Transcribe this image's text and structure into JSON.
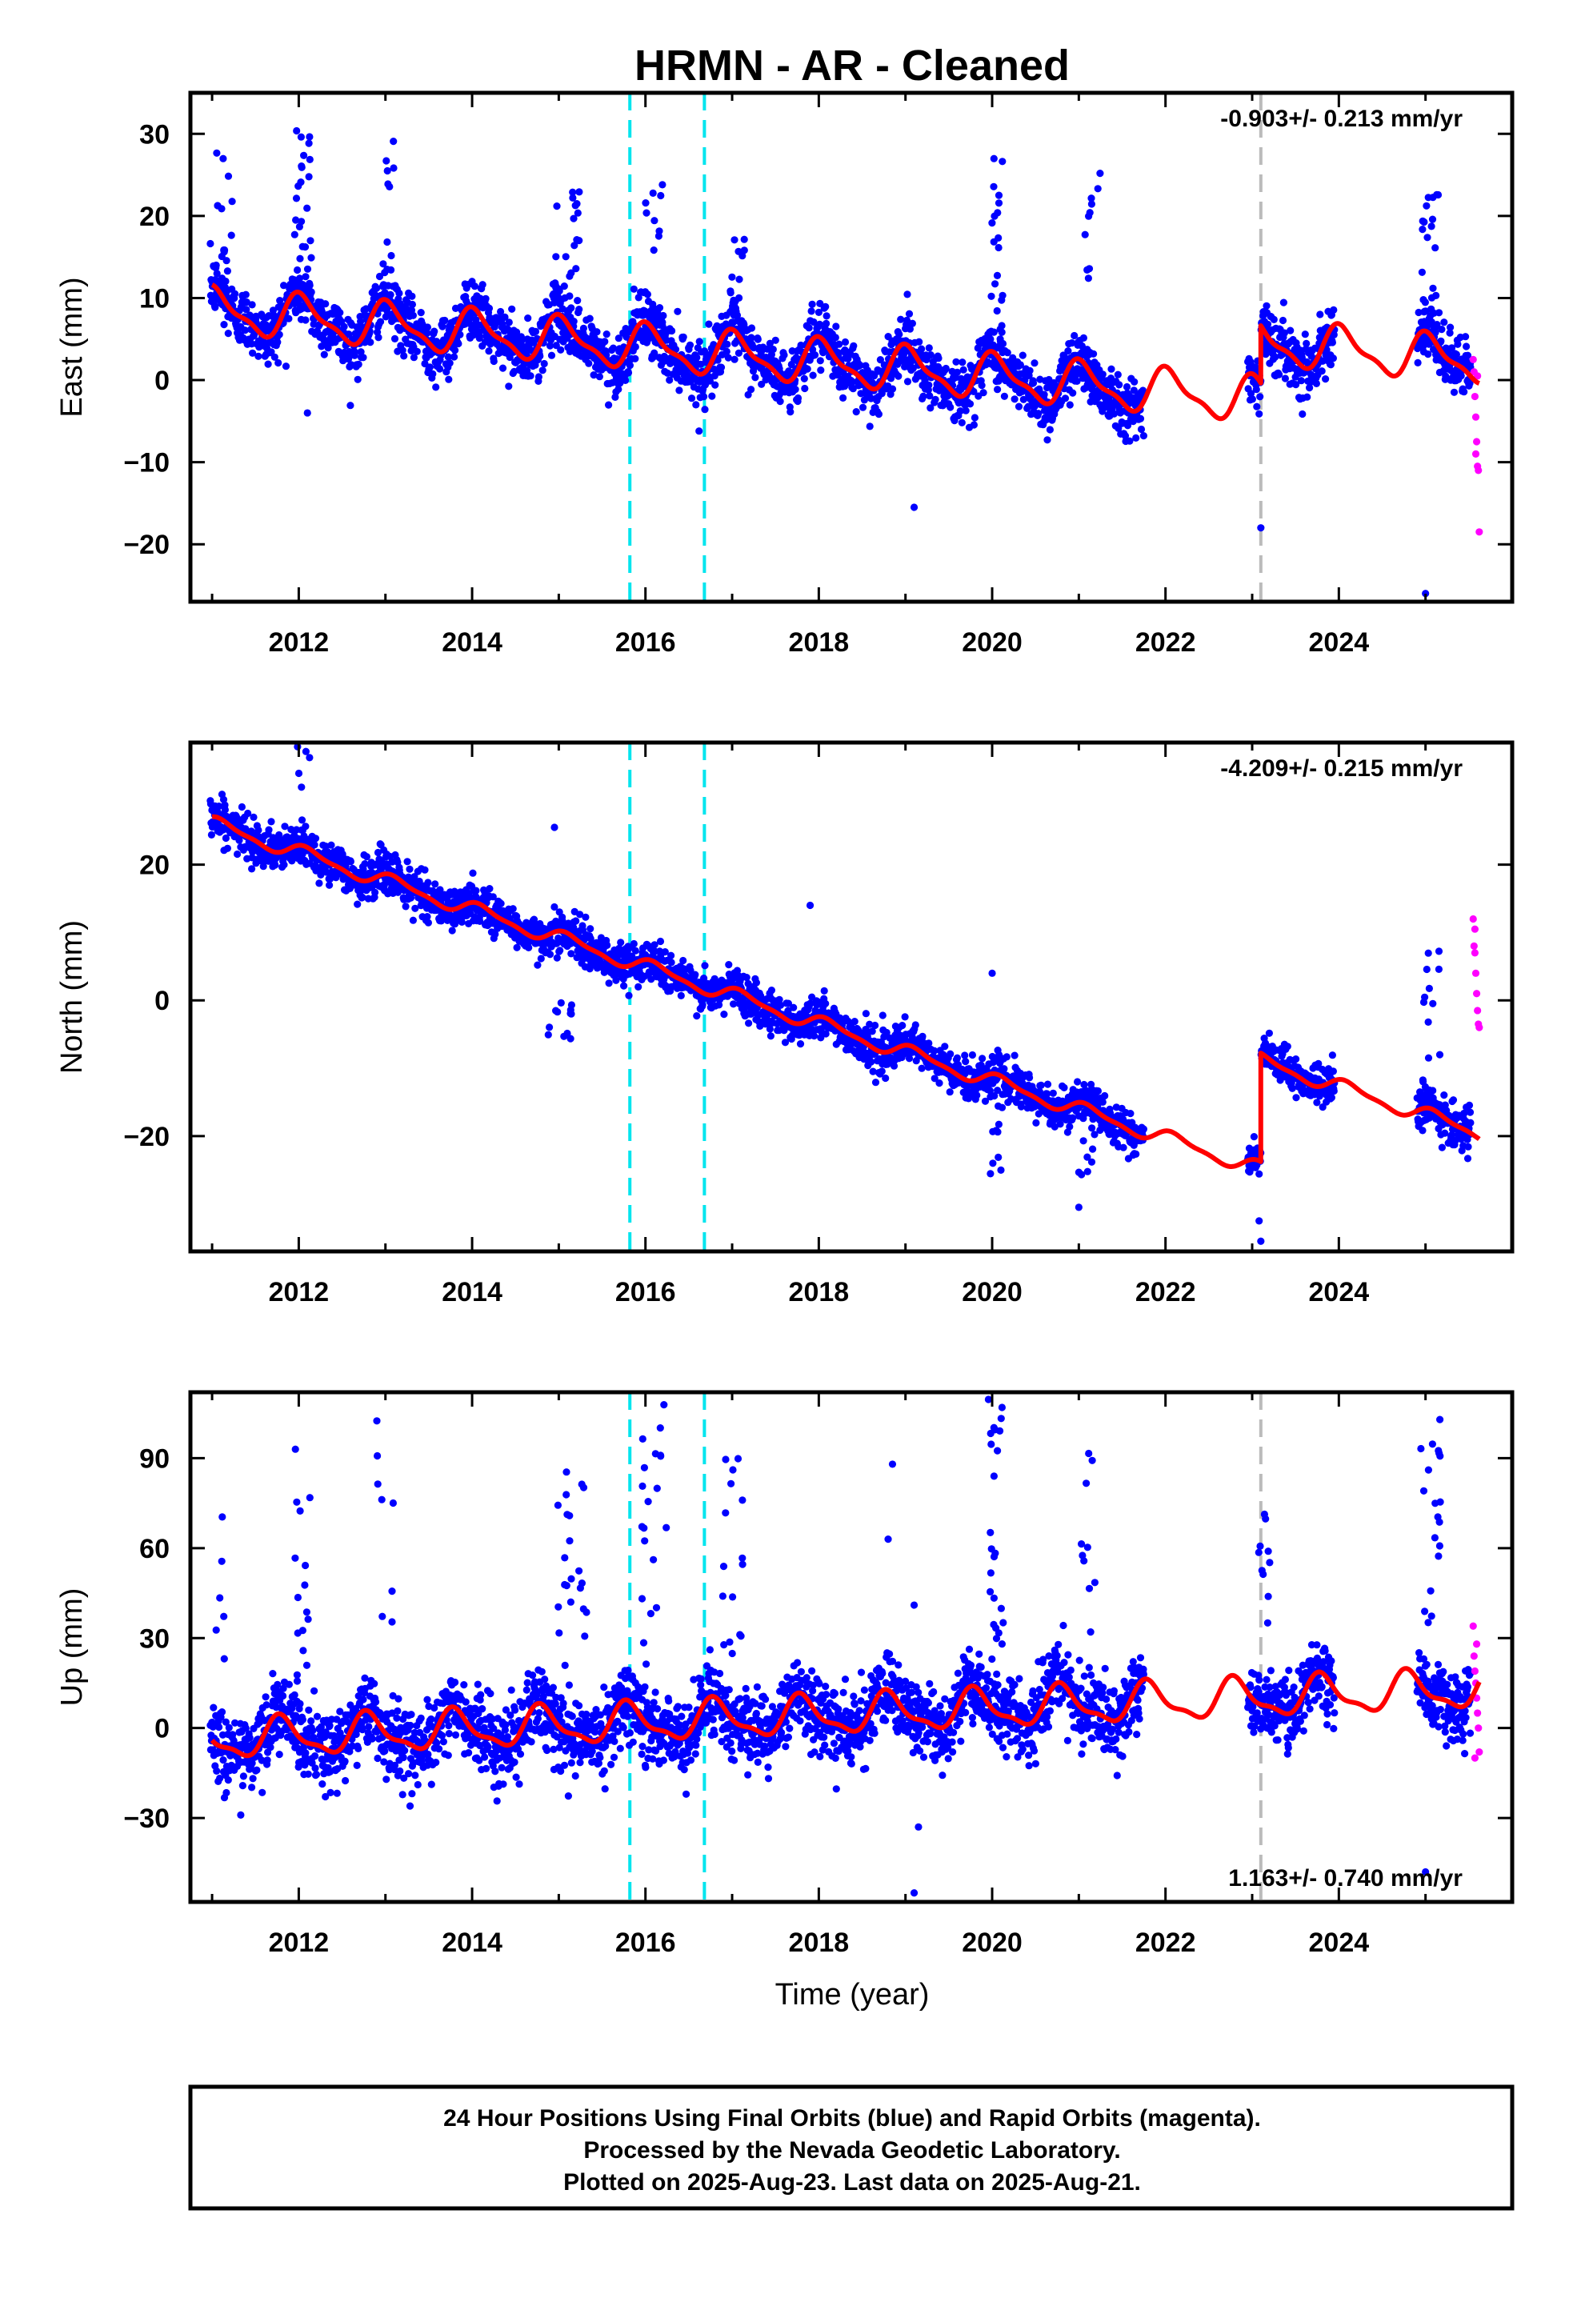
{
  "chart_data": {
    "title": "HRMN  - AR - Cleaned",
    "type": "scatter",
    "xlabel": "Time (year)",
    "xlim": [
      2010.75,
      2026.0
    ],
    "x_ticks": [
      2012,
      2014,
      2016,
      2018,
      2020,
      2022,
      2024
    ],
    "x_tick_labels": [
      "2012",
      "2014",
      "2016",
      "2018",
      "2020",
      "2022",
      "2024"
    ],
    "event_lines": [
      {
        "x": 2015.82,
        "color": "#00e5ee",
        "style": "dashed"
      },
      {
        "x": 2016.68,
        "color": "#00e5ee",
        "style": "dashed"
      },
      {
        "x": 2023.1,
        "color": "#bbbbbb",
        "style": "dashed"
      }
    ],
    "colors": {
      "final_orbits": "#0000ff",
      "rapid_orbits": "#ff00ff",
      "model": "#ff0000"
    },
    "panels": [
      {
        "name": "east",
        "ylabel": "East (mm)",
        "ylim": [
          -27,
          35
        ],
        "y_ticks": [
          30,
          20,
          10,
          0,
          -10,
          -20
        ],
        "y_tick_labels": [
          "30",
          "20",
          "10",
          "0",
          "−10",
          "−20"
        ],
        "rate_text": "-0.903+/- 0.213 mm/yr",
        "rate_pos": "top-right",
        "event_lines": [
          0,
          1,
          2
        ],
        "model": {
          "x0": 2011.0,
          "v0": 8.5,
          "rate": -0.903,
          "amp": 2.5,
          "phase": 1.3,
          "x_end": 2025.62,
          "steps": [
            {
              "x": 2023.1,
              "dy": 7.0
            }
          ]
        },
        "final_orbits_noise": 1.8,
        "outlier_clusters": [
          {
            "x": 2011.15,
            "w": 0.2,
            "y": [
              12,
              29
            ],
            "n": 14
          },
          {
            "x": 2012.05,
            "w": 0.2,
            "y": [
              10,
              32
            ],
            "n": 26
          },
          {
            "x": 2013.05,
            "w": 0.1,
            "y": [
              12,
              34
            ],
            "n": 9
          },
          {
            "x": 2015.1,
            "w": 0.3,
            "y": [
              8,
              23
            ],
            "n": 22
          },
          {
            "x": 2016.1,
            "w": 0.25,
            "y": [
              6,
              24
            ],
            "n": 18
          },
          {
            "x": 2017.05,
            "w": 0.2,
            "y": [
              5,
              21
            ],
            "n": 14
          },
          {
            "x": 2020.05,
            "w": 0.15,
            "y": [
              5,
              28
            ],
            "n": 20
          },
          {
            "x": 2021.15,
            "w": 0.2,
            "y": [
              12,
              26
            ],
            "n": 10
          },
          {
            "x": 2025.05,
            "w": 0.2,
            "y": [
              8,
              26
            ],
            "n": 16
          }
        ],
        "low_outliers": [
          {
            "x": 2019.1,
            "y": -15.5
          },
          {
            "x": 2023.1,
            "y": -18.0
          },
          {
            "x": 2025.0,
            "y": -26.0
          },
          {
            "x": 2012.1,
            "y": -4.0
          }
        ],
        "rapid_orbits": [
          [
            2025.55,
            2.5
          ],
          [
            2025.56,
            1.0
          ],
          [
            2025.57,
            -2.0
          ],
          [
            2025.58,
            -4.5
          ],
          [
            2025.59,
            -7.5
          ],
          [
            2025.6,
            -10.5
          ],
          [
            2025.61,
            -11.0
          ],
          [
            2025.62,
            -18.5
          ],
          [
            2025.6,
            0.5
          ],
          [
            2025.58,
            -9.0
          ]
        ]
      },
      {
        "name": "north",
        "ylabel": "North (mm)",
        "ylim": [
          -37,
          38
        ],
        "y_ticks": [
          20,
          0,
          -20
        ],
        "y_tick_labels": [
          "20",
          "0",
          "−20"
        ],
        "rate_text": "-4.209+/- 0.215 mm/yr",
        "rate_pos": "top-right",
        "event_lines": [
          0,
          1
        ],
        "model": {
          "x0": 2011.0,
          "v0": 26.0,
          "rate": -4.209,
          "amp": 1.0,
          "phase": 0.8,
          "x_end": 2025.62,
          "steps": [
            {
              "x": 2023.1,
              "dy": 16.0
            }
          ]
        },
        "final_orbits_noise": 1.5,
        "outlier_clusters": [
          {
            "x": 2012.05,
            "w": 0.15,
            "y": [
              28,
              38
            ],
            "n": 5
          },
          {
            "x": 2012.95,
            "w": 0.1,
            "y": [
              20,
              27
            ],
            "n": 4
          },
          {
            "x": 2015.0,
            "w": 0.3,
            "y": [
              -6,
              0
            ],
            "n": 12
          },
          {
            "x": 2020.05,
            "w": 0.2,
            "y": [
              -26,
              -18
            ],
            "n": 8
          },
          {
            "x": 2021.1,
            "w": 0.2,
            "y": [
              -26,
              -20
            ],
            "n": 7
          },
          {
            "x": 2025.05,
            "w": 0.25,
            "y": [
              -14,
              10
            ],
            "n": 14
          }
        ],
        "low_outliers": [
          {
            "x": 2023.1,
            "y": -35.5
          },
          {
            "x": 2023.08,
            "y": -32.5
          },
          {
            "x": 2021.0,
            "y": -30.5
          },
          {
            "x": 2014.95,
            "y": 25.5
          },
          {
            "x": 2017.9,
            "y": 14.0
          },
          {
            "x": 2020.0,
            "y": 4.0
          }
        ],
        "rapid_orbits": [
          [
            2025.55,
            12.0
          ],
          [
            2025.56,
            8.0
          ],
          [
            2025.57,
            7.0
          ],
          [
            2025.58,
            4.0
          ],
          [
            2025.59,
            1.0
          ],
          [
            2025.6,
            -1.5
          ],
          [
            2025.61,
            -3.5
          ],
          [
            2025.62,
            -4.0
          ],
          [
            2025.57,
            10.5
          ]
        ]
      },
      {
        "name": "up",
        "ylabel": "Up (mm)",
        "ylim": [
          -58,
          112
        ],
        "y_ticks": [
          90,
          60,
          30,
          0,
          -30
        ],
        "y_tick_labels": [
          "90",
          "60",
          "30",
          "0",
          "−30"
        ],
        "rate_text": "1.163+/- 0.740 mm/yr",
        "rate_pos": "bottom-right",
        "event_lines": [
          0,
          1,
          2
        ],
        "model": {
          "x0": 2011.0,
          "v0": -4.0,
          "rate": 1.163,
          "amp": 6.0,
          "phase": 2.8,
          "x_end": 2025.62,
          "steps": []
        },
        "final_orbits_noise": 6.0,
        "outlier_clusters": [
          {
            "x": 2011.1,
            "w": 0.15,
            "y": [
              20,
              80
            ],
            "n": 6
          },
          {
            "x": 2012.05,
            "w": 0.2,
            "y": [
              15,
              96
            ],
            "n": 16
          },
          {
            "x": 2013.0,
            "w": 0.2,
            "y": [
              20,
              107
            ],
            "n": 8
          },
          {
            "x": 2015.15,
            "w": 0.35,
            "y": [
              20,
              98
            ],
            "n": 22
          },
          {
            "x": 2016.1,
            "w": 0.3,
            "y": [
              20,
              108
            ],
            "n": 20
          },
          {
            "x": 2017.0,
            "w": 0.25,
            "y": [
              20,
              92
            ],
            "n": 16
          },
          {
            "x": 2020.05,
            "w": 0.2,
            "y": [
              20,
              110
            ],
            "n": 24
          },
          {
            "x": 2021.1,
            "w": 0.2,
            "y": [
              20,
              92
            ],
            "n": 12
          },
          {
            "x": 2023.15,
            "w": 0.15,
            "y": [
              20,
              78
            ],
            "n": 10
          },
          {
            "x": 2025.05,
            "w": 0.25,
            "y": [
              20,
              104
            ],
            "n": 20
          }
        ],
        "low_outliers": [
          {
            "x": 2019.1,
            "y": -55.0
          },
          {
            "x": 2019.15,
            "y": -33.0
          },
          {
            "x": 2025.0,
            "y": -48.0
          },
          {
            "x": 2018.85,
            "y": 88.0
          },
          {
            "x": 2018.8,
            "y": 63.0
          },
          {
            "x": 2019.1,
            "y": 41.0
          }
        ],
        "rapid_orbits": [
          [
            2025.55,
            34.0
          ],
          [
            2025.56,
            24.0
          ],
          [
            2025.57,
            19.0
          ],
          [
            2025.58,
            15.0
          ],
          [
            2025.59,
            10.0
          ],
          [
            2025.6,
            5.0
          ],
          [
            2025.61,
            0.0
          ],
          [
            2025.62,
            -8.0
          ],
          [
            2025.57,
            -10.0
          ],
          [
            2025.59,
            28.0
          ]
        ]
      }
    ],
    "footer_lines": [
      "24 Hour Positions Using Final Orbits (blue) and Rapid Orbits (magenta).",
      "Processed by the Nevada Geodetic Laboratory.",
      "Plotted on 2025-Aug-23. Last data on 2025-Aug-21."
    ],
    "data_gap": [
      2021.75,
      2022.95
    ],
    "data_gap2": [
      2023.95,
      2024.9
    ]
  }
}
